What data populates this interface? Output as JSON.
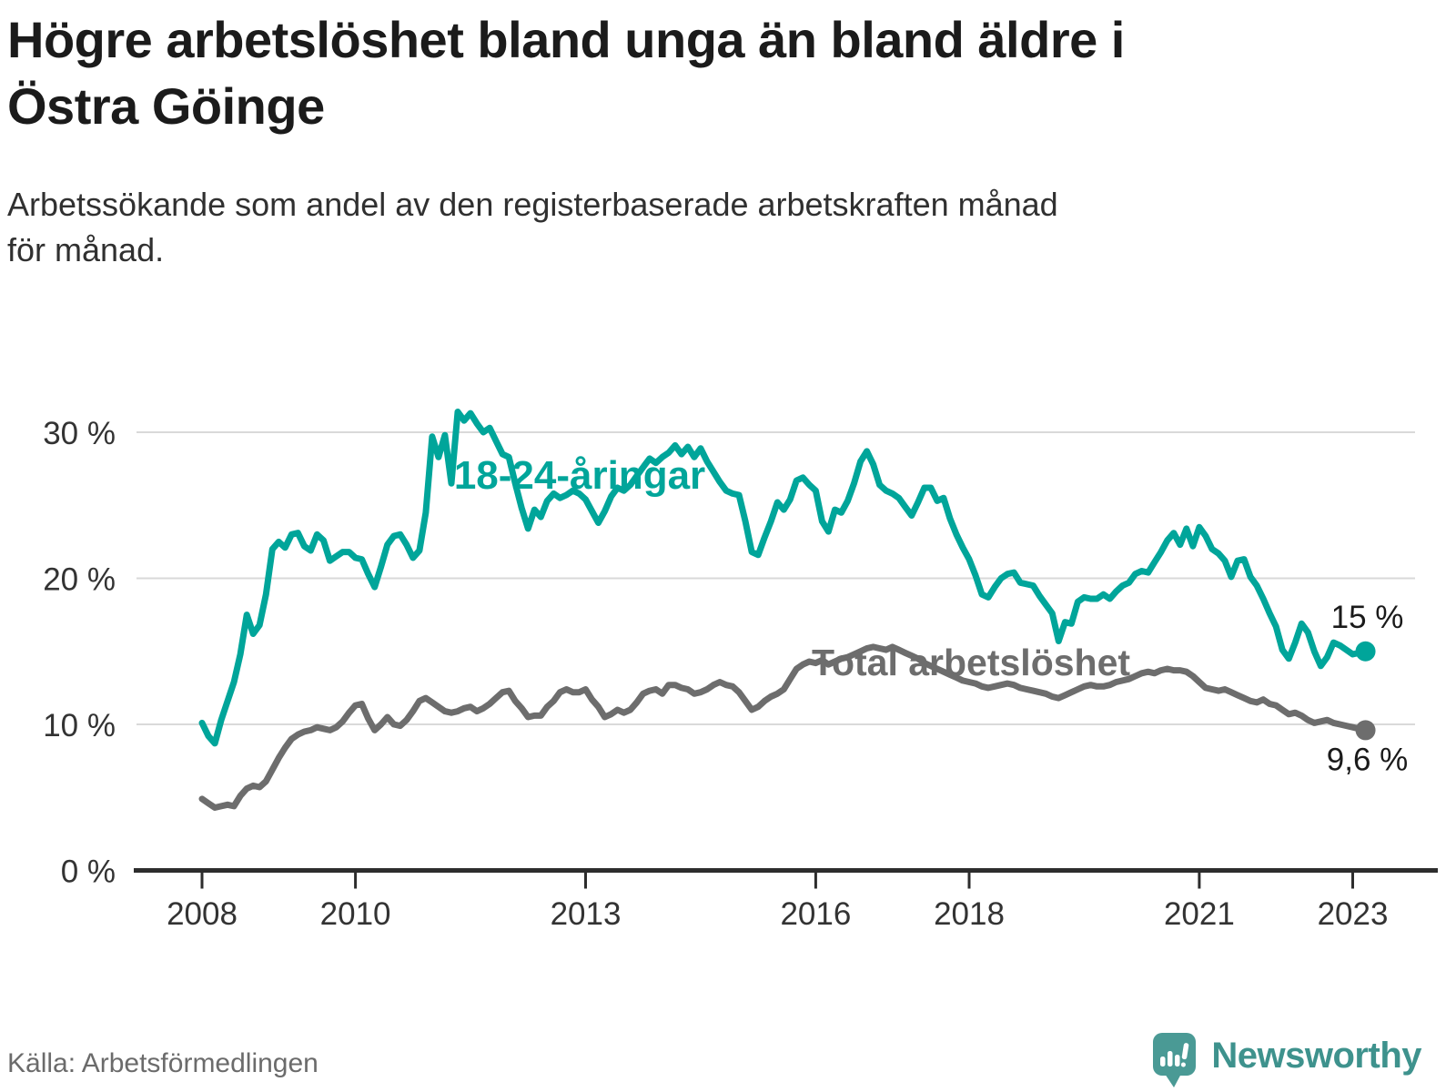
{
  "header": {
    "title": "Högre arbetslöshet bland unga än bland äldre i Östra Göinge",
    "title_lines": [
      "Högre arbetslöshet bland unga än bland äldre i",
      "Östra Göinge"
    ],
    "subtitle": "Arbetssökande som andel av den registerbaserade arbetskraften månad för månad.",
    "subtitle_lines": [
      "Arbetssökande som andel av den registerbaserade arbetskraften månad",
      "för månad."
    ]
  },
  "footer": {
    "source": "Källa: Arbetsförmedlingen",
    "brand": "Newsworthy",
    "brand_icon": "newsworthy-bubble-barchart-icon"
  },
  "colors": {
    "accent_teal": "#00a59a",
    "series_gray": "#6d6d6d",
    "grid": "#d9d9d9",
    "axis": "#2d2d2d",
    "tick_text": "#333333",
    "annotation_text": "#1a1a1a",
    "logo_teal": "#4a9a95",
    "logo_text_teal": "#3e928d"
  },
  "chart_data": {
    "type": "line",
    "title": "Högre arbetslöshet bland unga än bland äldre i Östra Göinge",
    "subtitle": "Arbetssökande som andel av den registerbaserade arbetskraften månad för månad.",
    "source": "Källa: Arbetsförmedlingen",
    "x_axis": {
      "unit": "time-monthly",
      "start_year": 2008,
      "start_month": 1,
      "end_year": 2023,
      "end_month": 3,
      "ticks": [
        {
          "year": 2008,
          "label": "2008"
        },
        {
          "year": 2010,
          "label": "2010"
        },
        {
          "year": 2013,
          "label": "2013"
        },
        {
          "year": 2016,
          "label": "2016"
        },
        {
          "year": 2018,
          "label": "2018"
        },
        {
          "year": 2021,
          "label": "2021"
        },
        {
          "year": 2023,
          "label": "2023"
        }
      ]
    },
    "y_axis": {
      "unit": "percent",
      "ylim": [
        0,
        32
      ],
      "grid": true,
      "ticks": [
        {
          "value": 0,
          "label": "0 %"
        },
        {
          "value": 10,
          "label": "10 %"
        },
        {
          "value": 20,
          "label": "20 %"
        },
        {
          "value": 30,
          "label": "30 %"
        }
      ]
    },
    "series": [
      {
        "id": "total",
        "name": "Total arbetslöshet",
        "color": "#6d6d6d",
        "end_label": "9,6 %",
        "last_value": 9.6,
        "values": [
          4.9,
          4.6,
          4.3,
          4.4,
          4.5,
          4.4,
          5.1,
          5.6,
          5.8,
          5.7,
          6.1,
          6.9,
          7.7,
          8.4,
          9.0,
          9.3,
          9.5,
          9.6,
          9.8,
          9.7,
          9.6,
          9.8,
          10.2,
          10.8,
          11.3,
          11.4,
          10.4,
          9.6,
          10.0,
          10.5,
          10.0,
          9.9,
          10.3,
          10.9,
          11.6,
          11.8,
          11.5,
          11.2,
          10.9,
          10.8,
          10.9,
          11.1,
          11.2,
          10.9,
          11.1,
          11.4,
          11.8,
          12.2,
          12.3,
          11.6,
          11.1,
          10.5,
          10.6,
          10.6,
          11.2,
          11.6,
          12.2,
          12.4,
          12.2,
          12.2,
          12.4,
          11.7,
          11.2,
          10.5,
          10.7,
          11.0,
          10.8,
          11.0,
          11.5,
          12.1,
          12.3,
          12.4,
          12.1,
          12.7,
          12.7,
          12.5,
          12.4,
          12.1,
          12.2,
          12.4,
          12.7,
          12.9,
          12.7,
          12.6,
          12.2,
          11.6,
          11.0,
          11.2,
          11.6,
          11.9,
          12.1,
          12.4,
          13.1,
          13.8,
          14.1,
          14.3,
          14.2,
          14.4,
          14.1,
          14.3,
          14.5,
          14.6,
          14.8,
          15.0,
          15.2,
          15.3,
          15.2,
          15.1,
          15.3,
          15.1,
          14.9,
          14.7,
          14.5,
          14.2,
          14.0,
          13.8,
          13.6,
          13.4,
          13.2,
          13.0,
          12.9,
          12.8,
          12.6,
          12.5,
          12.6,
          12.7,
          12.8,
          12.7,
          12.5,
          12.4,
          12.3,
          12.2,
          12.1,
          11.9,
          11.8,
          12.0,
          12.2,
          12.4,
          12.6,
          12.7,
          12.6,
          12.6,
          12.7,
          12.9,
          13.0,
          13.1,
          13.3,
          13.5,
          13.6,
          13.5,
          13.7,
          13.8,
          13.7,
          13.7,
          13.6,
          13.3,
          12.9,
          12.5,
          12.4,
          12.3,
          12.4,
          12.2,
          12.0,
          11.8,
          11.6,
          11.5,
          11.7,
          11.4,
          11.3,
          11.0,
          10.7,
          10.8,
          10.6,
          10.3,
          10.1,
          10.2,
          10.3,
          10.1,
          10.0,
          9.9,
          9.8,
          9.7,
          9.6
        ]
      },
      {
        "id": "youth",
        "name": "18-24-åringar",
        "color": "#00a59a",
        "end_label": "15 %",
        "last_value": 15.0,
        "values": [
          10.1,
          9.2,
          8.7,
          10.3,
          11.6,
          12.9,
          14.8,
          17.5,
          16.2,
          16.8,
          18.9,
          22.0,
          22.5,
          22.1,
          23.0,
          23.1,
          22.2,
          21.9,
          23.0,
          22.6,
          21.2,
          21.5,
          21.8,
          21.8,
          21.4,
          21.3,
          20.3,
          19.4,
          20.8,
          22.3,
          22.9,
          23.0,
          22.3,
          21.4,
          21.9,
          24.5,
          29.7,
          28.3,
          29.8,
          26.5,
          31.4,
          30.8,
          31.3,
          30.6,
          30.0,
          30.3,
          29.4,
          28.5,
          28.3,
          26.5,
          24.8,
          23.4,
          24.7,
          24.2,
          25.3,
          25.8,
          25.5,
          25.7,
          26.0,
          25.8,
          25.4,
          24.6,
          23.8,
          24.6,
          25.6,
          26.2,
          26.0,
          26.4,
          27.0,
          27.6,
          28.2,
          27.9,
          28.3,
          28.6,
          29.1,
          28.5,
          29.0,
          28.3,
          28.9,
          28.0,
          27.3,
          26.6,
          26.0,
          25.8,
          25.7,
          23.9,
          21.8,
          21.6,
          22.8,
          23.9,
          25.2,
          24.7,
          25.4,
          26.7,
          26.9,
          26.4,
          26.0,
          23.9,
          23.2,
          24.7,
          24.5,
          25.3,
          26.5,
          28.0,
          28.7,
          27.8,
          26.4,
          26.0,
          25.8,
          25.5,
          24.9,
          24.3,
          25.2,
          26.2,
          26.2,
          25.3,
          25.5,
          24.1,
          23.0,
          22.1,
          21.3,
          20.2,
          18.9,
          18.7,
          19.4,
          20.0,
          20.3,
          20.4,
          19.7,
          19.6,
          19.5,
          18.8,
          18.2,
          17.6,
          15.7,
          17.0,
          16.9,
          18.4,
          18.7,
          18.6,
          18.6,
          18.9,
          18.6,
          19.1,
          19.5,
          19.7,
          20.3,
          20.5,
          20.4,
          21.1,
          21.8,
          22.6,
          23.1,
          22.3,
          23.4,
          22.2,
          23.5,
          22.9,
          22.0,
          21.7,
          21.2,
          20.1,
          21.2,
          21.3,
          20.1,
          19.5,
          18.6,
          17.6,
          16.7,
          15.1,
          14.5,
          15.6,
          16.9,
          16.3,
          15.0,
          14.0,
          14.6,
          15.6,
          15.4,
          15.1,
          14.8,
          14.9,
          15.0
        ]
      }
    ],
    "annotations": {
      "youth_line_label": "18-24-åringar",
      "total_line_label": "Total arbetslöshet",
      "youth_end_label": "15 %",
      "total_end_label": "9,6 %"
    },
    "legend_position": "inline-labels"
  }
}
